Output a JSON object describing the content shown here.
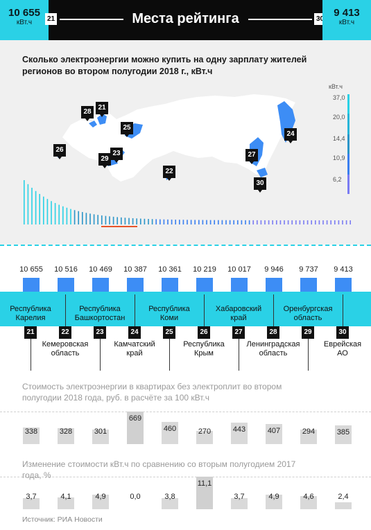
{
  "header": {
    "left_value": "10 655",
    "left_unit": "кВт.ч",
    "left_rank": "21",
    "title": "Места рейтинга",
    "right_rank": "30",
    "right_value": "9 413",
    "right_unit": "кВт.ч"
  },
  "map": {
    "title": "Сколько электроэнергии можно купить на одну зарплату жителей регионов во втором полугодии 2018 г., кВт.ч",
    "scale_unit": "кВт.ч",
    "scale": [
      {
        "label": "37,0",
        "color": "#2ad1e6"
      },
      {
        "label": "20,0",
        "color": "#27b5d8"
      },
      {
        "label": "14,4",
        "color": "#2b95c9"
      },
      {
        "label": "10,9",
        "color": "#3a7ff0"
      },
      {
        "label": "6,2",
        "color": "#7b7cf3"
      }
    ],
    "pins": [
      "28",
      "21",
      "25",
      "26",
      "23",
      "29",
      "22",
      "24",
      "27",
      "30"
    ]
  },
  "chart_data": [
    {
      "type": "bar",
      "title": "Сколько электроэнергии можно купить на одну зарплату жителей регионов во втором полугодии 2018 г., кВт.ч",
      "categories": [
        "Республика Карелия",
        "Кемеровская область",
        "Республика Башкортостан",
        "Камчатский край",
        "Республика Коми",
        "Республика Крым",
        "Хабаровский край",
        "Ленинградская область",
        "Оренбургская область",
        "Еврейская АО"
      ],
      "ranks": [
        "21",
        "22",
        "23",
        "24",
        "25",
        "26",
        "27",
        "28",
        "29",
        "30"
      ],
      "values": [
        10655,
        10516,
        10469,
        10387,
        10361,
        10219,
        10017,
        9946,
        9737,
        9413
      ],
      "value_labels": [
        "10 655",
        "10 516",
        "10 469",
        "10 387",
        "10 361",
        "10 219",
        "10 017",
        "9 946",
        "9 737",
        "9 413"
      ]
    },
    {
      "type": "bar",
      "title": "Стоимость электроэнергии в квартирах без электроплит во втором полугодии 2018 года, руб. в расчёте за 100 кВт.ч",
      "values": [
        338,
        328,
        301,
        669,
        460,
        270,
        443,
        407,
        294,
        385
      ],
      "value_labels": [
        "338",
        "328",
        "301",
        "669",
        "460",
        "270",
        "443",
        "407",
        "294",
        "385"
      ]
    },
    {
      "type": "bar",
      "title": "Изменение стоимости кВт.ч  по сравнению со вторым полугодием 2017 года, %",
      "values": [
        3.7,
        4.1,
        4.9,
        0.0,
        3.8,
        11.1,
        3.7,
        4.9,
        4.6,
        2.4
      ],
      "value_labels": [
        "3,7",
        "4,1",
        "4,9",
        "0,0",
        "3,8",
        "11,1",
        "3,7",
        "4,9",
        "4,6",
        "2,4"
      ]
    }
  ],
  "regions": [
    "Республика\nКарелия",
    "Кемеровская\nобласть",
    "Республика\nБашкортостан",
    "Камчатский\nкрай",
    "Республика\nКоми",
    "Республика\nКрым",
    "Хабаровский\nкрай",
    "Ленинградская\nобласть",
    "Оренбургская\nобласть",
    "Еврейская\nАО"
  ],
  "source": "Источник: РИА Новости"
}
